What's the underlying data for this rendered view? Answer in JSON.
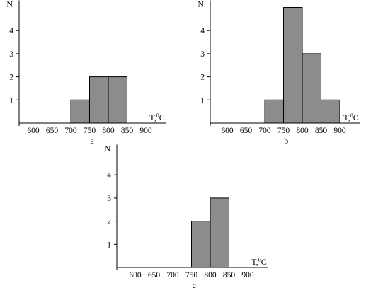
{
  "chart_data": [
    {
      "type": "bar",
      "panel": "a",
      "caption": "a",
      "ylabel": "N",
      "xlabel": "T,°C",
      "xlabel_main": "T,",
      "xlabel_sup": "0",
      "xlabel_tail": "C",
      "x_ticks": [
        "600",
        "650",
        "700",
        "750",
        "800",
        "850",
        "900"
      ],
      "y_ticks": [
        "1",
        "2",
        "3",
        "4"
      ],
      "bins": [
        {
          "from": 700,
          "to": 750,
          "value": 1
        },
        {
          "from": 750,
          "to": 800,
          "value": 2
        },
        {
          "from": 800,
          "to": 850,
          "value": 2
        }
      ],
      "xlim": [
        560,
        950
      ],
      "ylim": [
        0,
        5
      ]
    },
    {
      "type": "bar",
      "panel": "b",
      "caption": "b",
      "ylabel": "N",
      "xlabel": "T,°C",
      "xlabel_main": "T,",
      "xlabel_sup": "0",
      "xlabel_tail": "C",
      "x_ticks": [
        "600",
        "650",
        "700",
        "750",
        "800",
        "850",
        "900"
      ],
      "y_ticks": [
        "1",
        "2",
        "3",
        "4"
      ],
      "bins": [
        {
          "from": 700,
          "to": 750,
          "value": 1
        },
        {
          "from": 750,
          "to": 800,
          "value": 5
        },
        {
          "from": 800,
          "to": 850,
          "value": 3
        },
        {
          "from": 850,
          "to": 900,
          "value": 1
        }
      ],
      "xlim": [
        560,
        950
      ],
      "ylim": [
        0,
        5
      ]
    },
    {
      "type": "bar",
      "panel": "c",
      "caption": "c",
      "ylabel": "N",
      "xlabel": "T,°C",
      "xlabel_main": "T,",
      "xlabel_sup": "0",
      "xlabel_tail": "C",
      "x_ticks": [
        "600",
        "650",
        "700",
        "750",
        "800",
        "850",
        "900"
      ],
      "y_ticks": [
        "1",
        "2",
        "3",
        "4"
      ],
      "bins": [
        {
          "from": 750,
          "to": 800,
          "value": 2
        },
        {
          "from": 800,
          "to": 850,
          "value": 3
        }
      ],
      "xlim": [
        560,
        950
      ],
      "ylim": [
        0,
        5
      ]
    }
  ]
}
